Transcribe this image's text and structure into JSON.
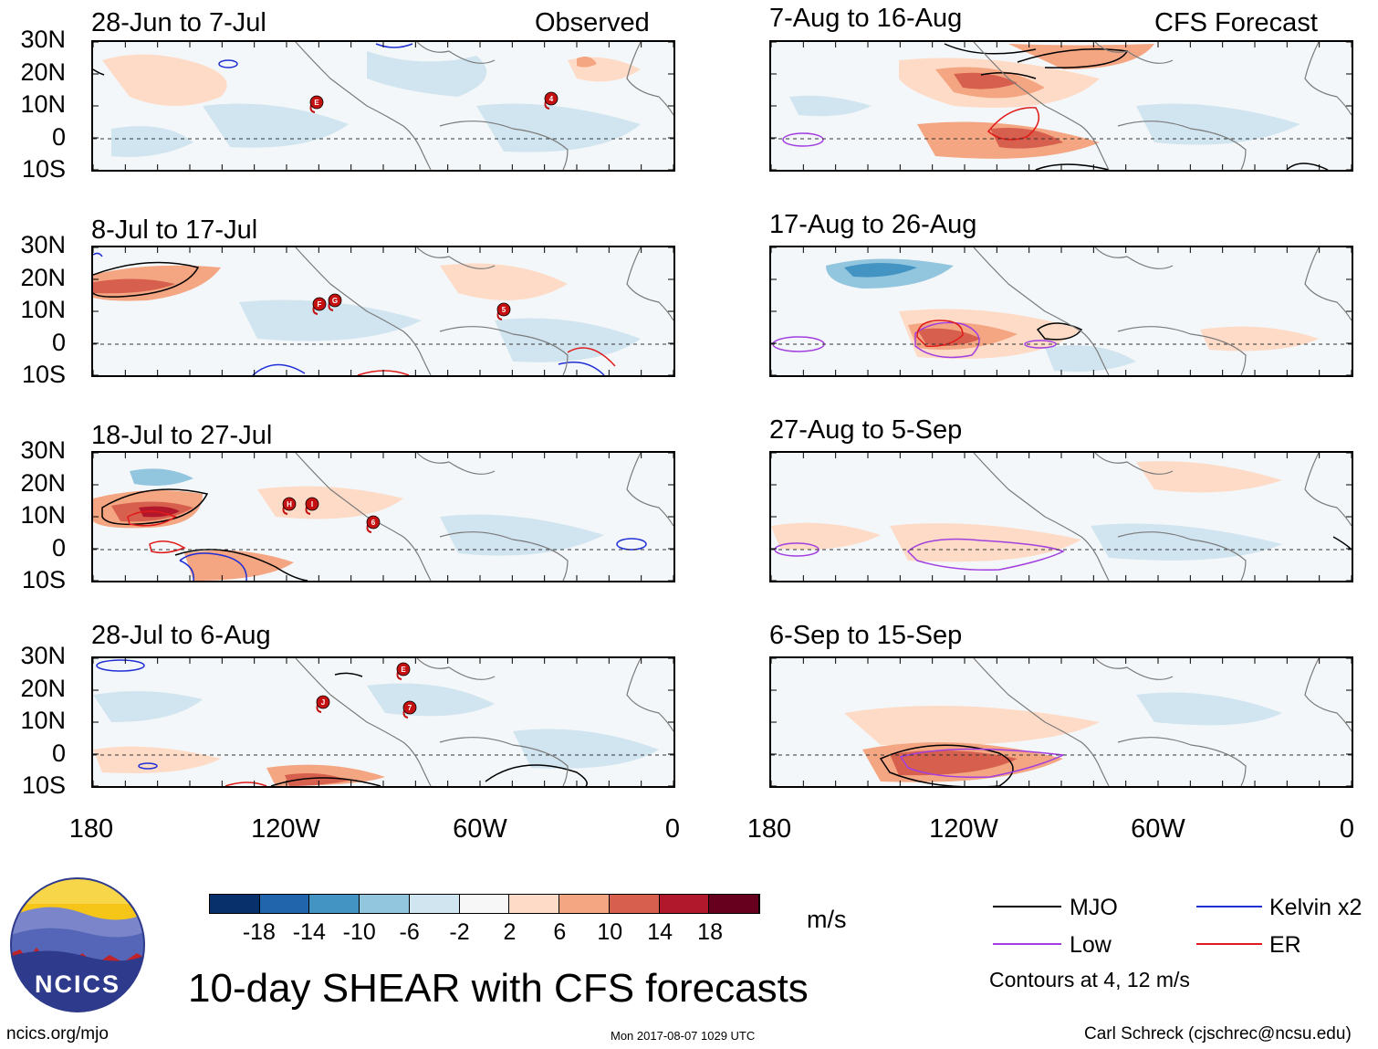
{
  "colors": {
    "mjo": "#000000",
    "kelvin": "#1f2fd6",
    "low": "#a23ee0",
    "er": "#e01a1a",
    "land": "#7a7a7a",
    "storm": "#c41010"
  },
  "header": {
    "observed_label": "Observed",
    "forecast_label": "CFS Forecast"
  },
  "axes": {
    "lat_labels": [
      "30N",
      "20N",
      "10N",
      "0",
      "10S"
    ],
    "lon_labels": [
      "180",
      "120W",
      "60W",
      "0"
    ]
  },
  "observed_panels": [
    {
      "title": "28-Jun to 7-Jul",
      "storms": [
        "E",
        "4"
      ]
    },
    {
      "title": "8-Jul to 17-Jul",
      "storms": [
        "F",
        "G",
        "5"
      ]
    },
    {
      "title": "18-Jul to 27-Jul",
      "storms": [
        "H",
        "I",
        "6"
      ]
    },
    {
      "title": "28-Jul to 6-Aug",
      "storms": [
        "E",
        "J",
        "7"
      ]
    }
  ],
  "forecast_panels": [
    {
      "title": "7-Aug to 16-Aug"
    },
    {
      "title": "17-Aug to 26-Aug"
    },
    {
      "title": "27-Aug to 5-Sep"
    },
    {
      "title": "6-Sep to 15-Sep"
    }
  ],
  "colorbar": {
    "colors": [
      "#08306b",
      "#2166ac",
      "#4393c3",
      "#92c5de",
      "#d1e5f0",
      "#f7f7f7",
      "#fddbc7",
      "#f4a582",
      "#d6604d",
      "#b2182b",
      "#67001f"
    ],
    "ticks": [
      "-18",
      "-14",
      "-10",
      "-6",
      "-2",
      "2",
      "6",
      "10",
      "14",
      "18"
    ],
    "unit": "m/s"
  },
  "legend": {
    "mjo": "MJO",
    "kelvin": "Kelvin x2",
    "low": "Low",
    "er": "ER",
    "note": "Contours at 4, 12 m/s"
  },
  "footer": {
    "title": "10-day SHEAR with CFS forecasts",
    "url": "ncics.org/mjo",
    "timestamp": "Mon 2017-08-07 1029 UTC",
    "credit": "Carl Schreck (cjschrec@ncsu.edu)",
    "logo_text": "NCICS"
  }
}
